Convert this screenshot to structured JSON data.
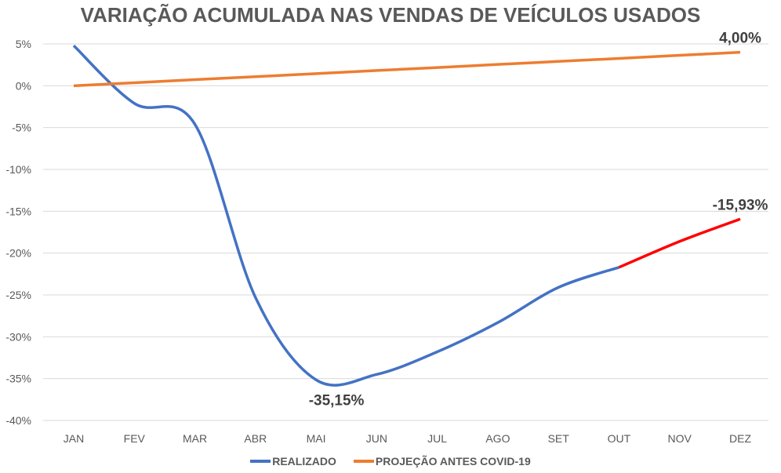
{
  "chart_data": {
    "type": "line",
    "title": "VARIAÇÃO ACUMULADA NAS VENDAS DE VEÍCULOS USADOS",
    "categories": [
      "JAN",
      "FEV",
      "MAR",
      "ABR",
      "MAI",
      "JUN",
      "JUL",
      "AGO",
      "SET",
      "OUT",
      "NOV",
      "DEZ"
    ],
    "ylim": [
      -40,
      5
    ],
    "yticks": [
      5,
      0,
      -5,
      -10,
      -15,
      -20,
      -25,
      -30,
      -35,
      -40
    ],
    "ytick_labels": [
      "5%",
      "0%",
      "-5%",
      "-10%",
      "-15%",
      "-20%",
      "-25%",
      "-30%",
      "-35%",
      "-40%"
    ],
    "grid": true,
    "legend_position": "bottom",
    "series": [
      {
        "name": "REALIZADO",
        "color": "#4472C4",
        "highlight_color": "#FF0000",
        "highlight_from": "OUT",
        "values": [
          4.8,
          -2.1,
          -4.6,
          -25.3,
          -35.15,
          -34.5,
          -31.8,
          -28.3,
          -24.1,
          -21.7,
          -18.6,
          -15.93
        ]
      },
      {
        "name": "PROJEÇÃO ANTES COVID-19",
        "color": "#ED7D31",
        "values": [
          0,
          0.36,
          0.73,
          1.09,
          1.45,
          1.82,
          2.18,
          2.55,
          2.91,
          3.27,
          3.64,
          4.0
        ]
      }
    ],
    "annotations": [
      {
        "series": 0,
        "category": "MAI",
        "text": "-35,15%"
      },
      {
        "series": 0,
        "category": "DEZ",
        "text": "-15,93%"
      },
      {
        "series": 1,
        "category": "DEZ",
        "text": "4,00%"
      }
    ]
  }
}
